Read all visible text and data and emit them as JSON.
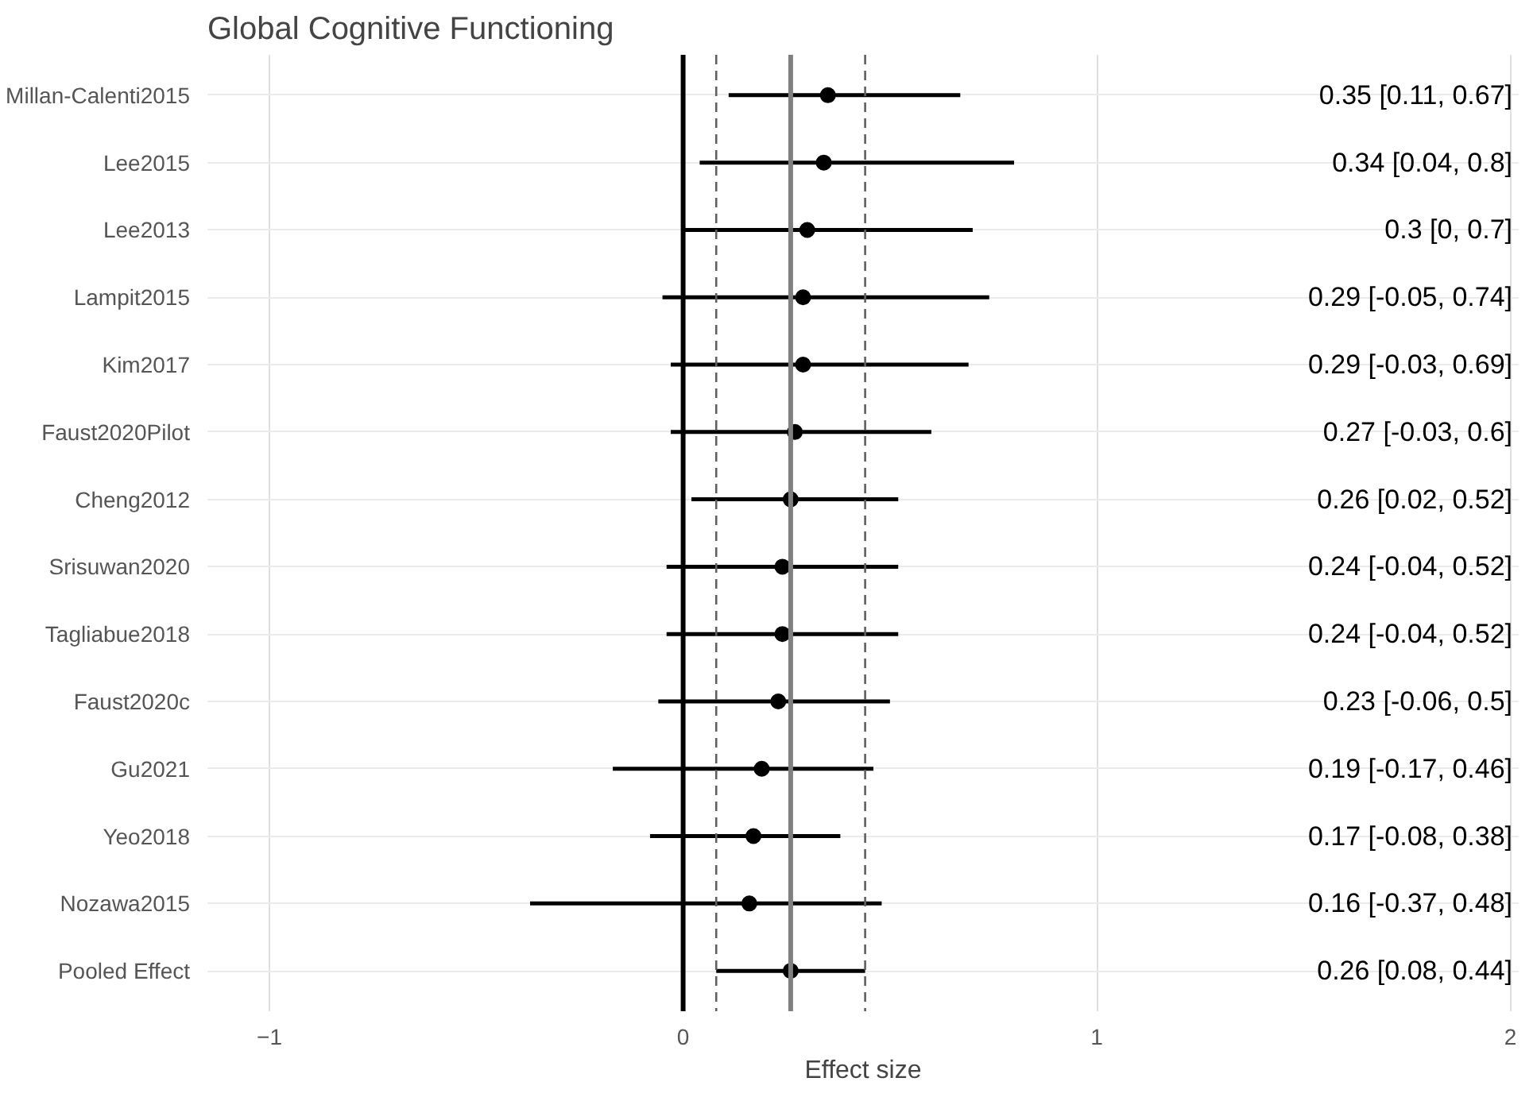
{
  "chart_data": {
    "type": "scatter",
    "orientation": "horizontal",
    "title": "Global Cognitive Functioning",
    "xlabel": "Effect size",
    "categories": [
      "Millan-Calenti2015",
      "Lee2015",
      "Lee2013",
      "Lampit2015",
      "Kim2017",
      "Faust2020Pilot",
      "Cheng2012",
      "Srisuwan2020",
      "Tagliabue2018",
      "Faust2020c",
      "Gu2021",
      "Yeo2018",
      "Nozawa2015",
      "Pooled Effect"
    ],
    "values": [
      0.35,
      0.34,
      0.3,
      0.29,
      0.29,
      0.27,
      0.26,
      0.24,
      0.24,
      0.23,
      0.19,
      0.17,
      0.16,
      0.26
    ],
    "errors": [
      [
        0.11,
        0.67
      ],
      [
        0.04,
        0.8
      ],
      [
        0,
        0.7
      ],
      [
        -0.05,
        0.74
      ],
      [
        -0.03,
        0.69
      ],
      [
        -0.03,
        0.6
      ],
      [
        0.02,
        0.52
      ],
      [
        -0.04,
        0.52
      ],
      [
        -0.04,
        0.52
      ],
      [
        -0.06,
        0.5
      ],
      [
        -0.17,
        0.46
      ],
      [
        -0.08,
        0.38
      ],
      [
        -0.37,
        0.48
      ],
      [
        0.08,
        0.44
      ]
    ],
    "annotations": [
      "0.35 [0.11, 0.67]",
      "0.34 [0.04, 0.8]",
      "0.3 [0, 0.7]",
      "0.29 [-0.05, 0.74]",
      "0.29 [-0.03, 0.69]",
      "0.27 [-0.03, 0.6]",
      "0.26 [0.02, 0.52]",
      "0.24 [-0.04, 0.52]",
      "0.24 [-0.04, 0.52]",
      "0.23 [-0.06, 0.5]",
      "0.19 [-0.17, 0.46]",
      "0.17 [-0.08, 0.38]",
      "0.16 [-0.37, 0.48]",
      "0.26 [0.08, 0.44]"
    ],
    "color": "#000000",
    "marker": "circle",
    "xlim": [
      -1.15,
      2.02
    ],
    "xticks": [
      -1,
      0,
      1,
      2
    ],
    "grid": true,
    "ref_lines": [
      {
        "axis": "x",
        "value": 0,
        "color": "#000000",
        "line_style": "solid"
      },
      {
        "axis": "x",
        "value": 0.26,
        "color": "#808080",
        "line_style": "solid"
      },
      {
        "axis": "x",
        "value": 0.08,
        "color": "#606060",
        "line_style": "dashed"
      },
      {
        "axis": "x",
        "value": 0.44,
        "color": "#606060",
        "line_style": "dashed"
      }
    ]
  }
}
